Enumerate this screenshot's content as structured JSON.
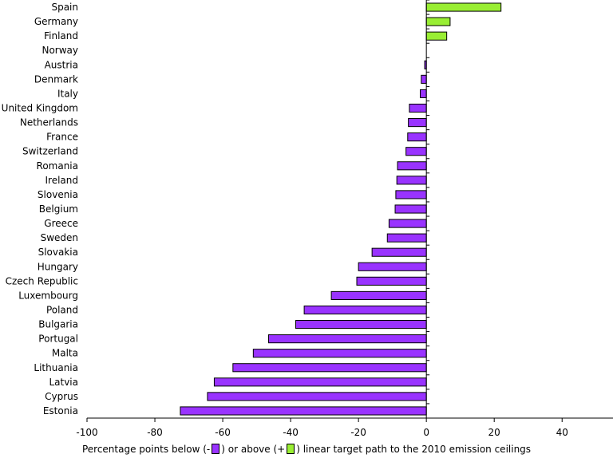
{
  "chart_data": {
    "type": "bar",
    "orientation": "horizontal",
    "categories": [
      "Spain",
      "Germany",
      "Finland",
      "Norway",
      "Austria",
      "Denmark",
      "Italy",
      "United Kingdom",
      "Netherlands",
      "France",
      "Switzerland",
      "Romania",
      "Ireland",
      "Slovenia",
      "Belgium",
      "Greece",
      "Sweden",
      "Slovakia",
      "Hungary",
      "Czech Republic",
      "Luxembourg",
      "Poland",
      "Bulgaria",
      "Portugal",
      "Malta",
      "Lithuania",
      "Latvia",
      "Cyprus",
      "Estonia"
    ],
    "values": [
      22,
      7,
      6,
      0,
      -0.5,
      -1.5,
      -1.8,
      -5,
      -5.3,
      -5.5,
      -6,
      -8.5,
      -8.7,
      -9,
      -9.2,
      -11,
      -11.5,
      -16,
      -20,
      -20.5,
      -28,
      -36,
      -38.5,
      -46.5,
      -51,
      -57,
      -62.5,
      -64.5,
      -72.5
    ],
    "xlim": [
      -100,
      55
    ],
    "xticks": [
      -100,
      -80,
      -60,
      -40,
      -20,
      0,
      20,
      40
    ],
    "xlabel_parts": [
      "Percentage points below (-",
      ") or above (+",
      ") linear target path to the 2010 emission ceilings"
    ],
    "negative_color": "#9933ff",
    "positive_color": "#99ee33"
  }
}
